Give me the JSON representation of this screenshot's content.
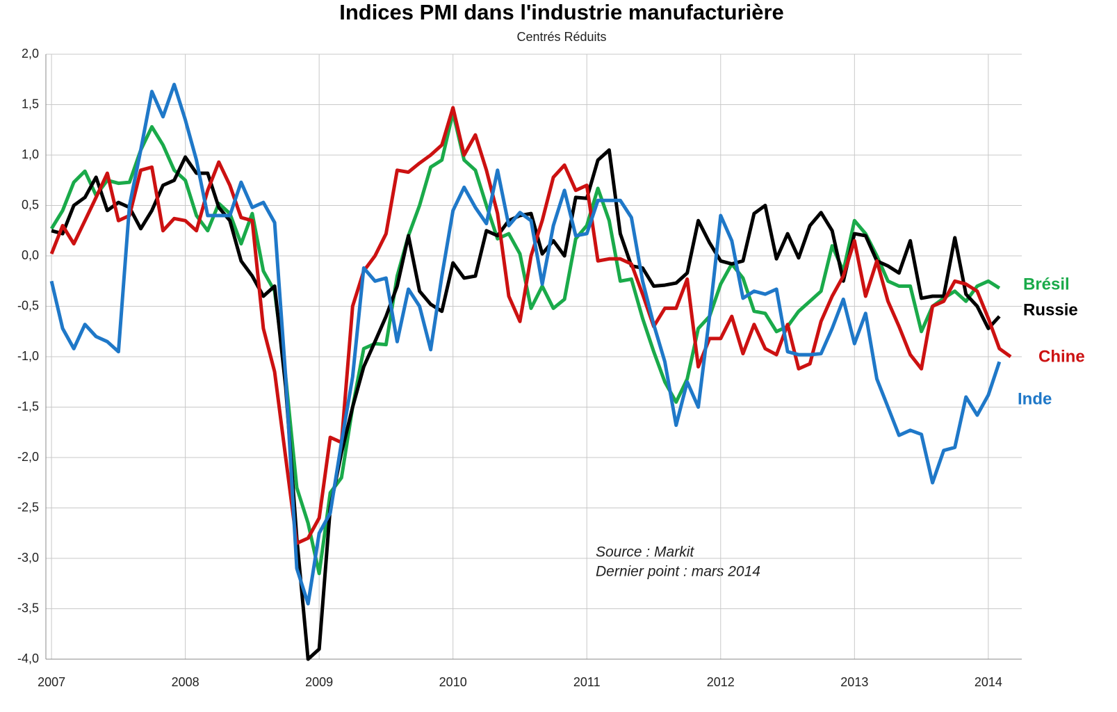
{
  "chart_data": {
    "type": "line",
    "title": "Indices PMI dans l'industrie manufacturière",
    "subtitle": "Centrés Réduits",
    "annotations": [
      "Source : Markit",
      "Dernier point : mars 2014"
    ],
    "x": [
      2007,
      2007.083,
      2007.167,
      2007.25,
      2007.333,
      2007.417,
      2007.5,
      2007.583,
      2007.667,
      2007.75,
      2007.833,
      2007.917,
      2008,
      2008.083,
      2008.167,
      2008.25,
      2008.333,
      2008.417,
      2008.5,
      2008.583,
      2008.667,
      2008.75,
      2008.833,
      2008.917,
      2009,
      2009.083,
      2009.167,
      2009.25,
      2009.333,
      2009.417,
      2009.5,
      2009.583,
      2009.667,
      2009.75,
      2009.833,
      2009.917,
      2010,
      2010.083,
      2010.167,
      2010.25,
      2010.333,
      2010.417,
      2010.5,
      2010.583,
      2010.667,
      2010.75,
      2010.833,
      2010.917,
      2011,
      2011.083,
      2011.167,
      2011.25,
      2011.333,
      2011.417,
      2011.5,
      2011.583,
      2011.667,
      2011.75,
      2011.833,
      2011.917,
      2012,
      2012.083,
      2012.167,
      2012.25,
      2012.333,
      2012.417,
      2012.5,
      2012.583,
      2012.667,
      2012.75,
      2012.833,
      2012.917,
      2013,
      2013.083,
      2013.167,
      2013.25,
      2013.333,
      2013.417,
      2013.5,
      2013.583,
      2013.667,
      2013.75,
      2013.833,
      2013.917,
      2014,
      2014.083,
      2014.167
    ],
    "series": [
      {
        "name": "Brésil",
        "color": "#1aaa4a",
        "values": [
          0.27,
          0.45,
          0.73,
          0.84,
          0.6,
          0.75,
          0.72,
          0.73,
          1.05,
          1.28,
          1.1,
          0.85,
          0.75,
          0.4,
          0.25,
          0.52,
          0.42,
          0.12,
          0.42,
          -0.15,
          -0.35,
          -1.2,
          -2.3,
          -2.65,
          -3.15,
          -2.35,
          -2.2,
          -1.5,
          -0.92,
          -0.87,
          -0.88,
          -0.2,
          0.2,
          0.5,
          0.88,
          0.95,
          1.42,
          0.95,
          0.85,
          0.5,
          0.17,
          0.22,
          0.02,
          -0.52,
          -0.3,
          -0.52,
          -0.43,
          0.17,
          0.3,
          0.67,
          0.35,
          -0.25,
          -0.23,
          -0.62,
          -0.95,
          -1.25,
          -1.45,
          -1.22,
          -0.72,
          -0.6,
          -0.28,
          -0.08,
          -0.22,
          -0.55,
          -0.57,
          -0.75,
          -0.7,
          -0.55,
          -0.45,
          -0.35,
          0.1,
          -0.15,
          0.35,
          0.22,
          0.0,
          -0.25,
          -0.3,
          -0.3,
          -0.75,
          -0.5,
          -0.42,
          -0.35,
          -0.45,
          -0.3,
          -0.25,
          -0.32,
          null
        ]
      },
      {
        "name": "Russie",
        "color": "#000000",
        "values": [
          0.25,
          0.22,
          0.5,
          0.58,
          0.78,
          0.45,
          0.53,
          0.48,
          0.27,
          0.45,
          0.7,
          0.75,
          0.98,
          0.82,
          0.82,
          0.48,
          0.35,
          -0.05,
          -0.2,
          -0.4,
          -0.3,
          -1.3,
          -2.8,
          -4.0,
          -3.9,
          -2.5,
          -1.95,
          -1.5,
          -1.1,
          -0.85,
          -0.6,
          -0.3,
          0.2,
          -0.35,
          -0.48,
          -0.55,
          -0.07,
          -0.22,
          -0.2,
          0.25,
          0.2,
          0.35,
          0.4,
          0.42,
          0.02,
          0.15,
          0.0,
          0.58,
          0.57,
          0.95,
          1.05,
          0.22,
          -0.1,
          -0.12,
          -0.3,
          -0.29,
          -0.27,
          -0.17,
          0.35,
          0.13,
          -0.05,
          -0.08,
          -0.05,
          0.42,
          0.5,
          -0.03,
          0.22,
          -0.02,
          0.3,
          0.43,
          0.25,
          -0.25,
          0.22,
          0.2,
          -0.05,
          -0.1,
          -0.17,
          0.15,
          -0.42,
          -0.4,
          -0.4,
          0.18,
          -0.38,
          -0.5,
          -0.72,
          -0.6,
          null
        ]
      },
      {
        "name": "Chine",
        "color": "#cc1111",
        "values": [
          0.02,
          0.3,
          0.12,
          0.35,
          0.58,
          0.82,
          0.35,
          0.4,
          0.85,
          0.88,
          0.25,
          0.37,
          0.35,
          0.25,
          0.65,
          0.93,
          0.7,
          0.38,
          0.35,
          -0.72,
          -1.15,
          -2.0,
          -2.85,
          -2.8,
          -2.6,
          -1.8,
          -1.85,
          -0.5,
          -0.15,
          0.0,
          0.22,
          0.85,
          0.83,
          0.92,
          1.0,
          1.1,
          1.47,
          1.0,
          1.2,
          0.85,
          0.42,
          -0.4,
          -0.65,
          0.0,
          0.35,
          0.78,
          0.9,
          0.65,
          0.7,
          -0.05,
          -0.03,
          -0.03,
          -0.08,
          -0.38,
          -0.7,
          -0.52,
          -0.52,
          -0.23,
          -1.1,
          -0.82,
          -0.82,
          -0.6,
          -0.97,
          -0.68,
          -0.92,
          -0.98,
          -0.68,
          -1.12,
          -1.07,
          -0.65,
          -0.4,
          -0.2,
          0.15,
          -0.4,
          -0.05,
          -0.45,
          -0.7,
          -0.98,
          -1.12,
          -0.5,
          -0.45,
          -0.25,
          -0.28,
          -0.35,
          -0.62,
          -0.92,
          -1.0
        ]
      },
      {
        "name": "Inde",
        "color": "#1f78c8",
        "values": [
          -0.25,
          -0.72,
          -0.92,
          -0.68,
          -0.8,
          -0.85,
          -0.95,
          0.5,
          1.05,
          1.63,
          1.38,
          1.7,
          1.35,
          0.95,
          0.4,
          0.4,
          0.4,
          0.73,
          0.48,
          0.53,
          0.33,
          -1.2,
          -3.1,
          -3.45,
          -2.75,
          -2.55,
          -1.85,
          -1.2,
          -0.12,
          -0.25,
          -0.22,
          -0.85,
          -0.33,
          -0.5,
          -0.93,
          -0.2,
          0.45,
          0.68,
          0.48,
          0.32,
          0.85,
          0.3,
          0.43,
          0.35,
          -0.28,
          0.3,
          0.65,
          0.2,
          0.22,
          0.55,
          0.55,
          0.55,
          0.38,
          -0.25,
          -0.68,
          -1.05,
          -1.68,
          -1.25,
          -1.5,
          -0.6,
          0.4,
          0.15,
          -0.42,
          -0.35,
          -0.38,
          -0.33,
          -0.95,
          -0.98,
          -0.98,
          -0.97,
          -0.72,
          -0.43,
          -0.87,
          -0.57,
          -1.22,
          -1.5,
          -1.78,
          -1.73,
          -1.77,
          -2.25,
          -1.93,
          -1.9,
          -1.4,
          -1.58,
          -1.38,
          -1.05,
          null
        ]
      }
    ],
    "xlim": [
      2006.958,
      2014.25
    ],
    "xticks": [
      2007,
      2008,
      2009,
      2010,
      2011,
      2012,
      2013,
      2014
    ],
    "ylim": [
      -4,
      2
    ],
    "yticks": [
      {
        "value": -4,
        "label": "-4,0"
      },
      {
        "value": -3.5,
        "label": "-3,5"
      },
      {
        "value": -3,
        "label": "-3,0"
      },
      {
        "value": -2.5,
        "label": "-2,5"
      },
      {
        "value": -2,
        "label": "-2,0"
      },
      {
        "value": -1.5,
        "label": "-1,5"
      },
      {
        "value": -1,
        "label": "-1,0"
      },
      {
        "value": -0.5,
        "label": "-0,5"
      },
      {
        "value": 0,
        "label": "0,0"
      },
      {
        "value": 0.5,
        "label": "0,5"
      },
      {
        "value": 1,
        "label": "1,0"
      },
      {
        "value": 1.5,
        "label": "1,5"
      },
      {
        "value": 2,
        "label": "2,0"
      }
    ],
    "grid": true
  }
}
